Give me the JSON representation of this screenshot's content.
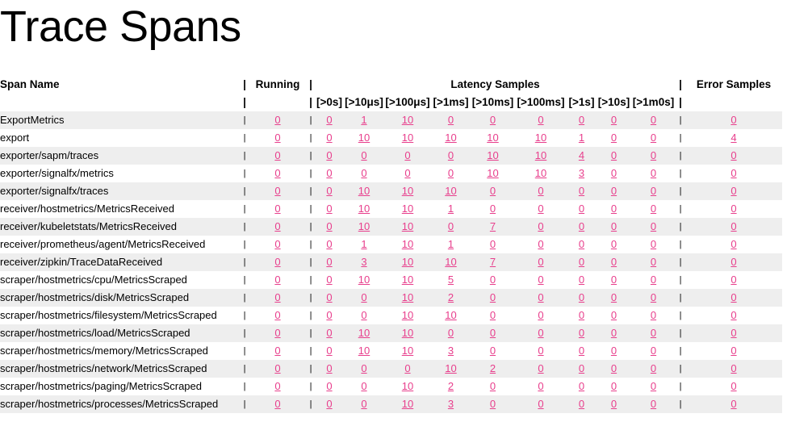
{
  "page_title": "Trace Spans",
  "headers": {
    "span_name": "Span Name",
    "running": "Running",
    "latency": "Latency Samples",
    "error": "Error Samples",
    "sep": "|",
    "buckets": [
      "[>0s]",
      "[>10μs]",
      "[>100μs]",
      "[>1ms]",
      "[>10ms]",
      "[>100ms]",
      "[>1s]",
      "[>10s]",
      "[>1m0s]"
    ]
  },
  "rows": [
    {
      "name": "ExportMetrics",
      "running": "0",
      "latency": [
        "0",
        "1",
        "10",
        "0",
        "0",
        "0",
        "0",
        "0",
        "0"
      ],
      "error": "0"
    },
    {
      "name": "export",
      "running": "0",
      "latency": [
        "0",
        "10",
        "10",
        "10",
        "10",
        "10",
        "1",
        "0",
        "0"
      ],
      "error": "4"
    },
    {
      "name": "exporter/sapm/traces",
      "running": "0",
      "latency": [
        "0",
        "0",
        "0",
        "0",
        "10",
        "10",
        "4",
        "0",
        "0"
      ],
      "error": "0"
    },
    {
      "name": "exporter/signalfx/metrics",
      "running": "0",
      "latency": [
        "0",
        "0",
        "0",
        "0",
        "10",
        "10",
        "3",
        "0",
        "0"
      ],
      "error": "0"
    },
    {
      "name": "exporter/signalfx/traces",
      "running": "0",
      "latency": [
        "0",
        "10",
        "10",
        "10",
        "0",
        "0",
        "0",
        "0",
        "0"
      ],
      "error": "0"
    },
    {
      "name": "receiver/hostmetrics/MetricsReceived",
      "running": "0",
      "latency": [
        "0",
        "10",
        "10",
        "1",
        "0",
        "0",
        "0",
        "0",
        "0"
      ],
      "error": "0"
    },
    {
      "name": "receiver/kubeletstats/MetricsReceived",
      "running": "0",
      "latency": [
        "0",
        "10",
        "10",
        "0",
        "7",
        "0",
        "0",
        "0",
        "0"
      ],
      "error": "0"
    },
    {
      "name": "receiver/prometheus/agent/MetricsReceived",
      "running": "0",
      "latency": [
        "0",
        "1",
        "10",
        "1",
        "0",
        "0",
        "0",
        "0",
        "0"
      ],
      "error": "0"
    },
    {
      "name": "receiver/zipkin/TraceDataReceived",
      "running": "0",
      "latency": [
        "0",
        "3",
        "10",
        "10",
        "7",
        "0",
        "0",
        "0",
        "0"
      ],
      "error": "0"
    },
    {
      "name": "scraper/hostmetrics/cpu/MetricsScraped",
      "running": "0",
      "latency": [
        "0",
        "10",
        "10",
        "5",
        "0",
        "0",
        "0",
        "0",
        "0"
      ],
      "error": "0"
    },
    {
      "name": "scraper/hostmetrics/disk/MetricsScraped",
      "running": "0",
      "latency": [
        "0",
        "0",
        "10",
        "2",
        "0",
        "0",
        "0",
        "0",
        "0"
      ],
      "error": "0"
    },
    {
      "name": "scraper/hostmetrics/filesystem/MetricsScraped",
      "running": "0",
      "latency": [
        "0",
        "0",
        "10",
        "10",
        "0",
        "0",
        "0",
        "0",
        "0"
      ],
      "error": "0"
    },
    {
      "name": "scraper/hostmetrics/load/MetricsScraped",
      "running": "0",
      "latency": [
        "0",
        "10",
        "10",
        "0",
        "0",
        "0",
        "0",
        "0",
        "0"
      ],
      "error": "0"
    },
    {
      "name": "scraper/hostmetrics/memory/MetricsScraped",
      "running": "0",
      "latency": [
        "0",
        "10",
        "10",
        "3",
        "0",
        "0",
        "0",
        "0",
        "0"
      ],
      "error": "0"
    },
    {
      "name": "scraper/hostmetrics/network/MetricsScraped",
      "running": "0",
      "latency": [
        "0",
        "0",
        "0",
        "10",
        "2",
        "0",
        "0",
        "0",
        "0"
      ],
      "error": "0"
    },
    {
      "name": "scraper/hostmetrics/paging/MetricsScraped",
      "running": "0",
      "latency": [
        "0",
        "0",
        "10",
        "2",
        "0",
        "0",
        "0",
        "0",
        "0"
      ],
      "error": "0"
    },
    {
      "name": "scraper/hostmetrics/processes/MetricsScraped",
      "running": "0",
      "latency": [
        "0",
        "0",
        "10",
        "3",
        "0",
        "0",
        "0",
        "0",
        "0"
      ],
      "error": "0"
    }
  ],
  "colors": {
    "link": "#e83e8c",
    "stripe": "#eeeeee"
  }
}
